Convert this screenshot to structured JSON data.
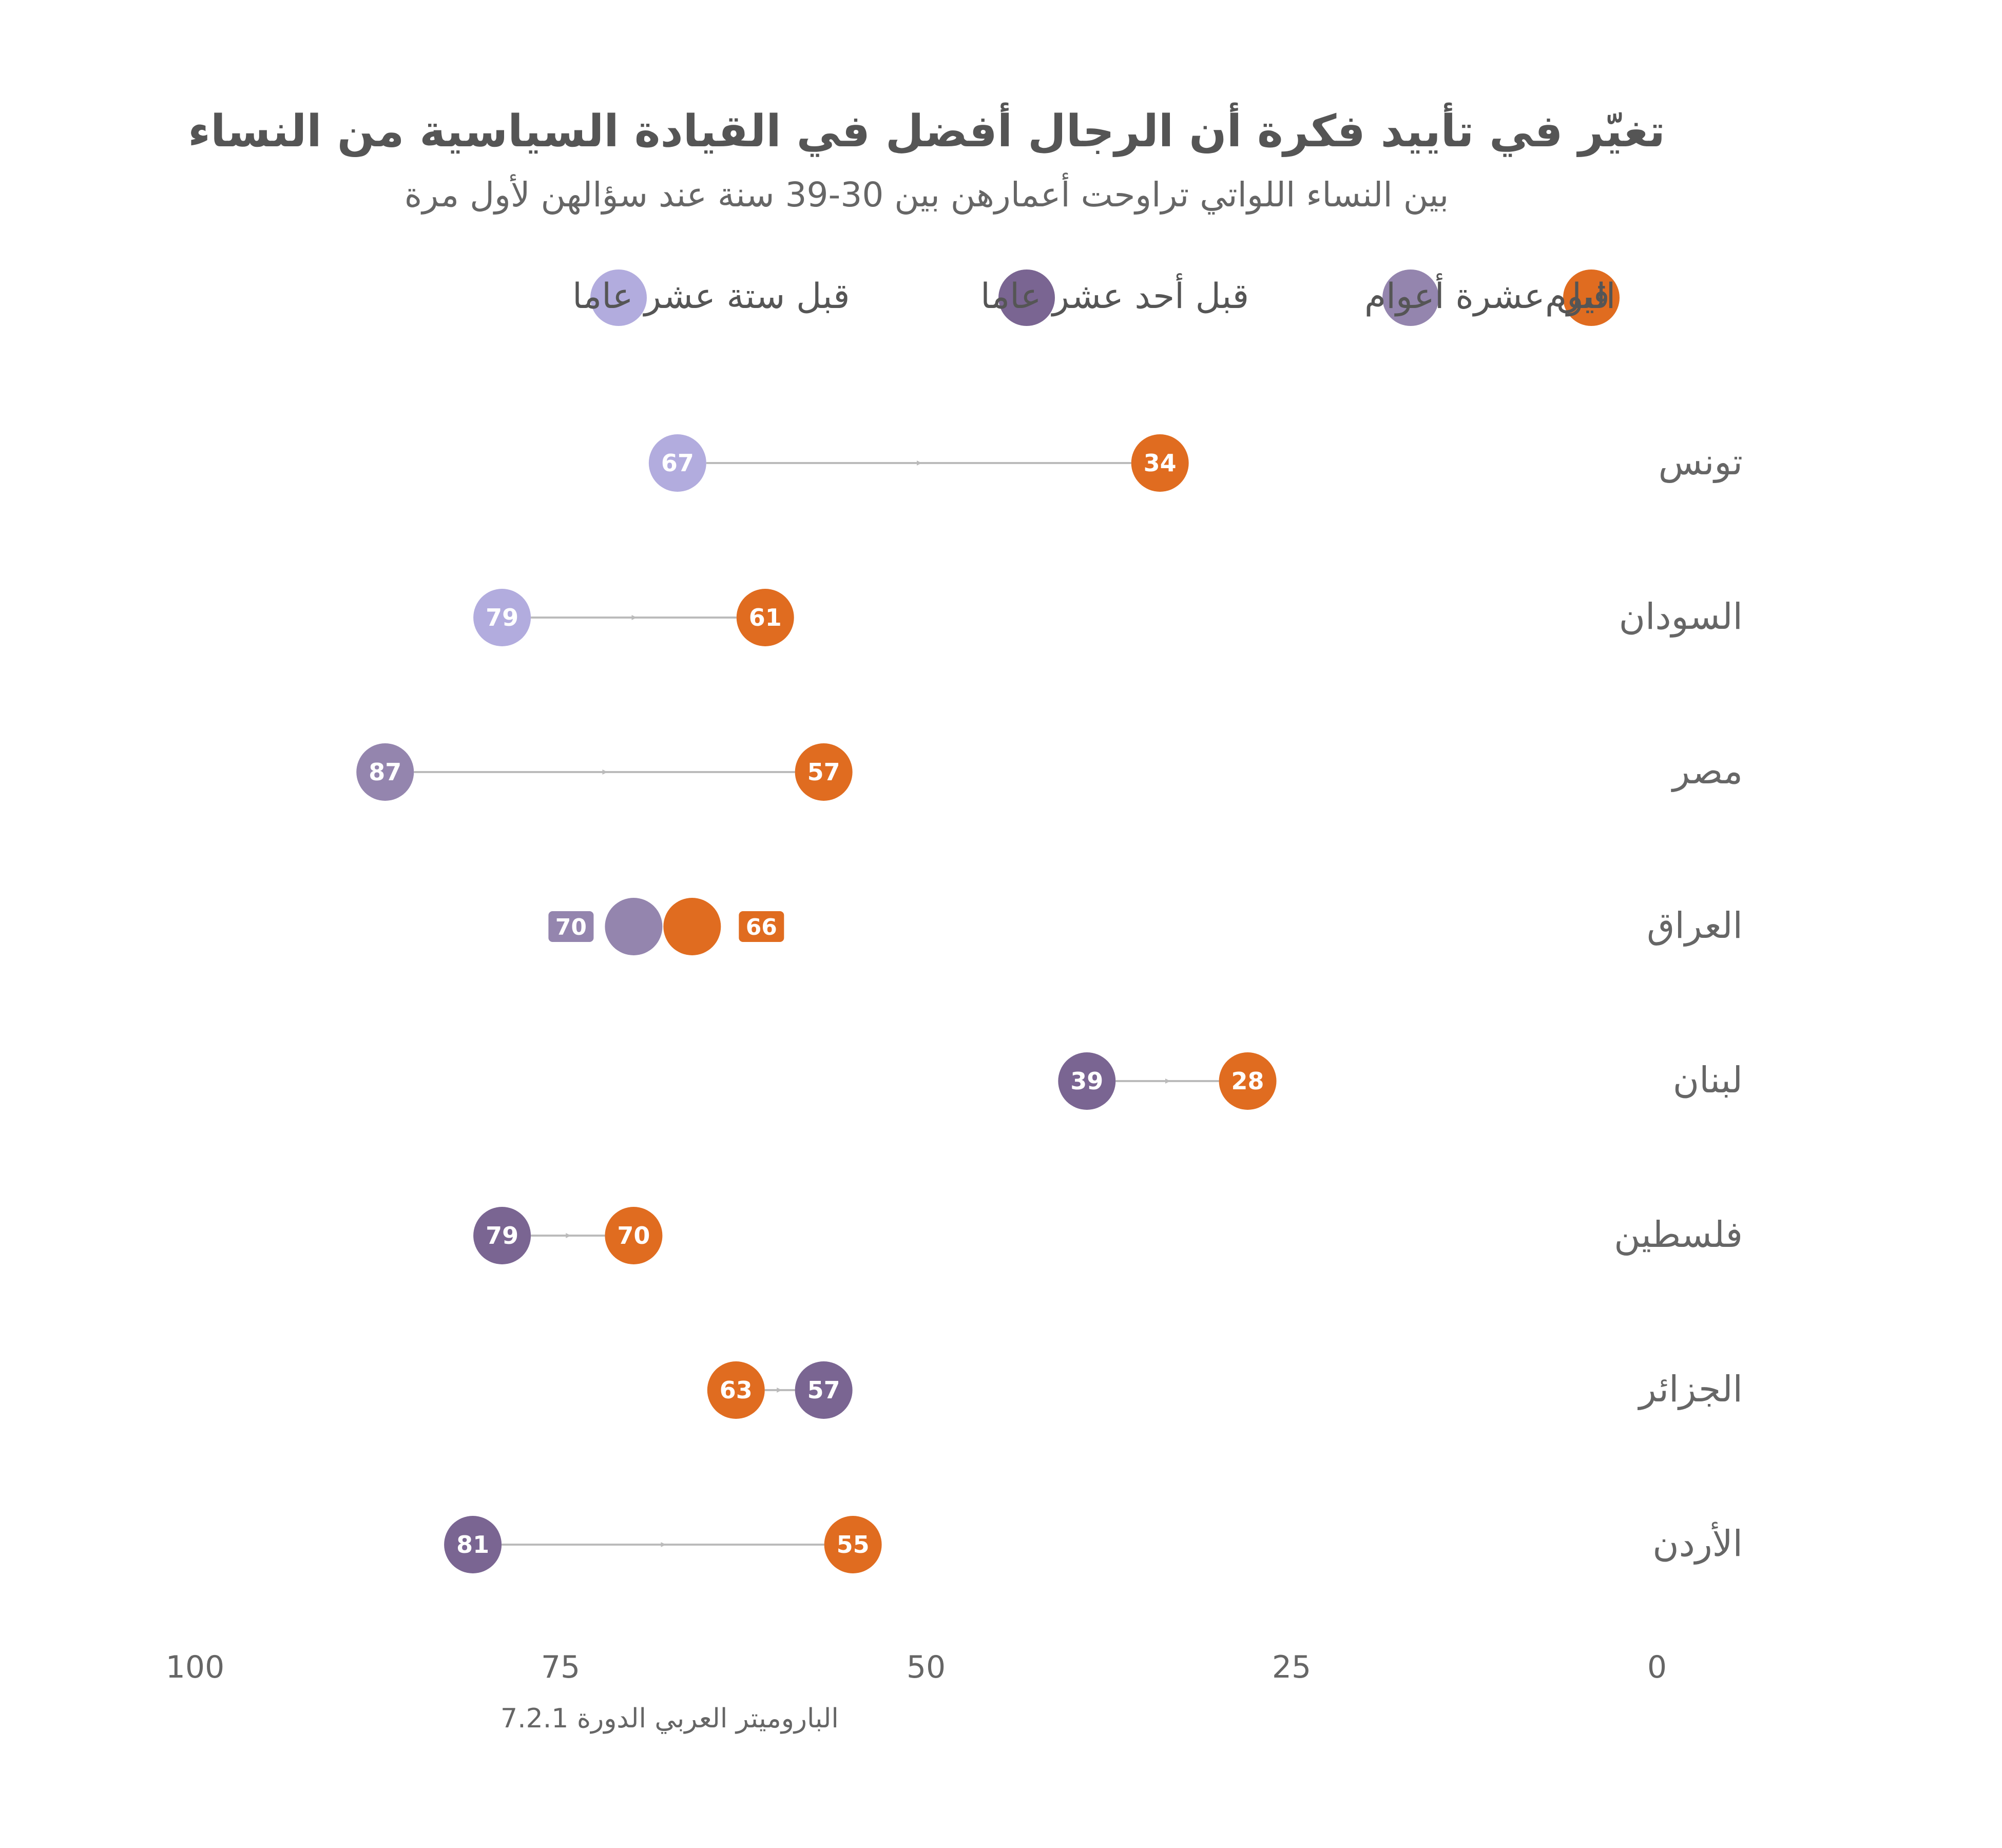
{
  "colors": {
    "today": "#E06C20",
    "ten_years": "#9485AE",
    "eleven_years": "#7A6592",
    "sixteen_years": "#B2ACDE",
    "connector": "#BBBBBB",
    "text_dark": "#555555",
    "text_mid": "#666666"
  },
  "chart_data": {
    "type": "dot-arrow",
    "title": "تغيّر في تأييد فكرة أن الرجال أفضل في القيادة السياسية من النساء",
    "subtitle": "بين النساء اللواتي تراوحت أعمارهن بين 30-39 سنة عند سؤالهن لأول مرة",
    "source": "الباروميتر العربي الدورة 7.2.1",
    "legend_position": "top",
    "legend": [
      {
        "key": "today",
        "label": "اليوم"
      },
      {
        "key": "ten_years",
        "label": "قبل عشرة أعوام"
      },
      {
        "key": "eleven_years",
        "label": "قبل أحد عشر عاما"
      },
      {
        "key": "sixteen_years",
        "label": "قبل ستة عشر عاما"
      }
    ],
    "x_axis": {
      "reversed": true,
      "range": [
        0,
        100
      ],
      "ticks": [
        "0",
        "25",
        "50",
        "75",
        "100"
      ]
    },
    "grid": false,
    "rows": [
      {
        "country": "تونس",
        "before": 67,
        "before_series": "sixteen_years",
        "today": 34
      },
      {
        "country": "السودان",
        "before": 79,
        "before_series": "sixteen_years",
        "today": 61
      },
      {
        "country": "مصر",
        "before": 87,
        "before_series": "ten_years",
        "today": 57
      },
      {
        "country": "العراق",
        "before": 70,
        "before_series": "ten_years",
        "today": 66,
        "labels_outside": true
      },
      {
        "country": "لبنان",
        "before": 39,
        "before_series": "eleven_years",
        "today": 28
      },
      {
        "country": "فلسطين",
        "before": 79,
        "before_series": "eleven_years",
        "today": 70
      },
      {
        "country": "الجزائر",
        "before": 57,
        "before_series": "eleven_years",
        "today": 63
      },
      {
        "country": "الأردن",
        "before": 81,
        "before_series": "eleven_years",
        "today": 55
      }
    ]
  }
}
